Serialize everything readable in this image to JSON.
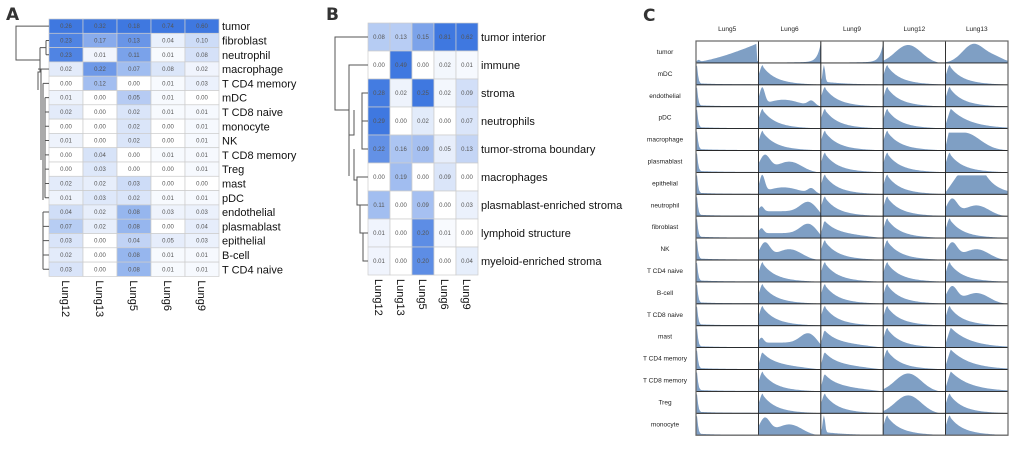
{
  "panels": {
    "a": "A",
    "b": "B",
    "c": "C"
  },
  "colors": {
    "heat_high": "#3f78e0",
    "heat_low": "#ffffff",
    "grid": "#cccccc",
    "density_fill": "#7f9fc4",
    "dendrogram": "#555555"
  },
  "chart_data": [
    {
      "type": "heatmap",
      "title": "A",
      "columns": [
        "Lung12",
        "Lung13",
        "Lung5",
        "Lung6",
        "Lung9"
      ],
      "rows": [
        "tumor",
        "fibroblast",
        "neutrophil",
        "macrophage",
        "T CD4 memory",
        "mDC",
        "T CD8 naive",
        "monocyte",
        "NK",
        "T CD8 memory",
        "Treg",
        "mast",
        "pDC",
        "endothelial",
        "plasmablast",
        "epithelial",
        "B-cell",
        "T CD4 naive"
      ],
      "values": [
        [
          "0.26",
          "0.32",
          "0.18",
          "0.74",
          "0.60"
        ],
        [
          "0.23",
          "0.17",
          "0.13",
          "0.04",
          "0.10"
        ],
        [
          "0.23",
          "0.01",
          "0.11",
          "0.01",
          "0.08"
        ],
        [
          "0.02",
          "0.22",
          "0.07",
          "0.08",
          "0.02"
        ],
        [
          "0.00",
          "0.12",
          "0.00",
          "0.01",
          "0.03"
        ],
        [
          "0.01",
          "0.00",
          "0.05",
          "0.01",
          "0.00"
        ],
        [
          "0.02",
          "0.00",
          "0.02",
          "0.01",
          "0.01"
        ],
        [
          "0.00",
          "0.00",
          "0.02",
          "0.00",
          "0.01"
        ],
        [
          "0.01",
          "0.00",
          "0.02",
          "0.00",
          "0.01"
        ],
        [
          "0.00",
          "0.04",
          "0.00",
          "0.01",
          "0.01"
        ],
        [
          "0.00",
          "0.03",
          "0.00",
          "0.00",
          "0.01"
        ],
        [
          "0.02",
          "0.02",
          "0.03",
          "0.00",
          "0.00"
        ],
        [
          "0.01",
          "0.03",
          "0.02",
          "0.01",
          "0.01"
        ],
        [
          "0.04",
          "0.02",
          "0.08",
          "0.03",
          "0.03"
        ],
        [
          "0.07",
          "0.02",
          "0.08",
          "0.00",
          "0.04"
        ],
        [
          "0.03",
          "0.00",
          "0.04",
          "0.05",
          "0.03"
        ],
        [
          "0.02",
          "0.00",
          "0.08",
          "0.01",
          "0.01"
        ],
        [
          "0.03",
          "0.00",
          "0.08",
          "0.01",
          "0.01"
        ]
      ],
      "color_scale": {
        "min": 0,
        "max": 0.74
      },
      "column_normalized": true
    },
    {
      "type": "heatmap",
      "title": "B",
      "columns": [
        "Lung12",
        "Lung13",
        "Lung5",
        "Lung6",
        "Lung9"
      ],
      "rows": [
        "tumor interior",
        "immune",
        "stroma",
        "neutrophils",
        "tumor-stroma boundary",
        "macrophages",
        "plasmablast-enriched stroma",
        "lymphoid structure",
        "myeloid-enriched stroma"
      ],
      "values": [
        [
          "0.08",
          "0.13",
          "0.15",
          "0.81",
          "0.62"
        ],
        [
          "0.00",
          "0.49",
          "0.00",
          "0.02",
          "0.01"
        ],
        [
          "0.28",
          "0.02",
          "0.25",
          "0.02",
          "0.09"
        ],
        [
          "0.29",
          "0.00",
          "0.02",
          "0.00",
          "0.07"
        ],
        [
          "0.22",
          "0.16",
          "0.09",
          "0.05",
          "0.13"
        ],
        [
          "0.00",
          "0.19",
          "0.00",
          "0.09",
          "0.00"
        ],
        [
          "0.11",
          "0.00",
          "0.09",
          "0.00",
          "0.03"
        ],
        [
          "0.01",
          "0.00",
          "0.20",
          "0.01",
          "0.00"
        ],
        [
          "0.01",
          "0.00",
          "0.20",
          "0.00",
          "0.04"
        ]
      ],
      "column_normalized": true
    },
    {
      "type": "area",
      "title": "C",
      "subtype": "density grid",
      "columns": [
        "Lung5",
        "Lung6",
        "Lung9",
        "Lung12",
        "Lung13"
      ],
      "rows": [
        "tumor",
        "mDC",
        "endothelial",
        "pDC",
        "macrophage",
        "plasmablast",
        "epithelial",
        "neutrophil",
        "fibroblast",
        "NK",
        "T CD4 naive",
        "B-cell",
        "T CD8 naive",
        "mast",
        "T CD4 memory",
        "T CD8 memory",
        "Treg",
        "monocyte"
      ],
      "shapes": {
        "tumor": [
          "tumor5",
          "spikeR",
          "spikeR",
          "humpL",
          "humpM"
        ],
        "mDC": [
          "spikeL",
          "decay",
          "spikeL2",
          "decay",
          "decay"
        ],
        "endothelial": [
          "spikeL",
          "bimodal",
          "decay",
          "decay",
          "decay"
        ],
        "pDC": [
          "spikeL",
          "decay",
          "decay",
          "decay",
          "decay2"
        ],
        "macrophage": [
          "spikeL",
          "decay",
          "decay",
          "decay",
          "plateau"
        ],
        "plasmablast": [
          "spikeL",
          "broad",
          "decay",
          "decay",
          "decay"
        ],
        "epithelial": [
          "spikeL",
          "bimodal",
          "decay",
          "decay",
          "plateauWide"
        ],
        "neutrophil": [
          "spikeL",
          "rising",
          "decay",
          "decay",
          "broad"
        ],
        "fibroblast": [
          "spikeL",
          "rising",
          "decayBroad",
          "decay",
          "decay"
        ],
        "NK": [
          "spikeL",
          "broad",
          "decay",
          "decay",
          "broad"
        ],
        "T CD4 naive": [
          "spikeL",
          "decay",
          "decay",
          "decay",
          "decay"
        ],
        "B-cell": [
          "spikeL",
          "decay",
          "decay",
          "decay",
          "broad"
        ],
        "T CD8 naive": [
          "spikeL",
          "decay",
          "decay",
          "decay",
          "decay"
        ],
        "mast": [
          "spikeL",
          "rising",
          "decayBroad",
          "decay",
          "decay2"
        ],
        "T CD4 memory": [
          "spikeL",
          "decayBroad",
          "decayBroad",
          "decay",
          "decay2"
        ],
        "T CD8 memory": [
          "spikeL",
          "decay",
          "decayBroad",
          "humpL",
          "decay2"
        ],
        "Treg": [
          "spikeL",
          "decay",
          "decay",
          "humpL",
          "decay"
        ],
        "monocyte": [
          "spikeL",
          "broad",
          "spikeL2",
          "decay",
          "decay"
        ]
      }
    }
  ]
}
